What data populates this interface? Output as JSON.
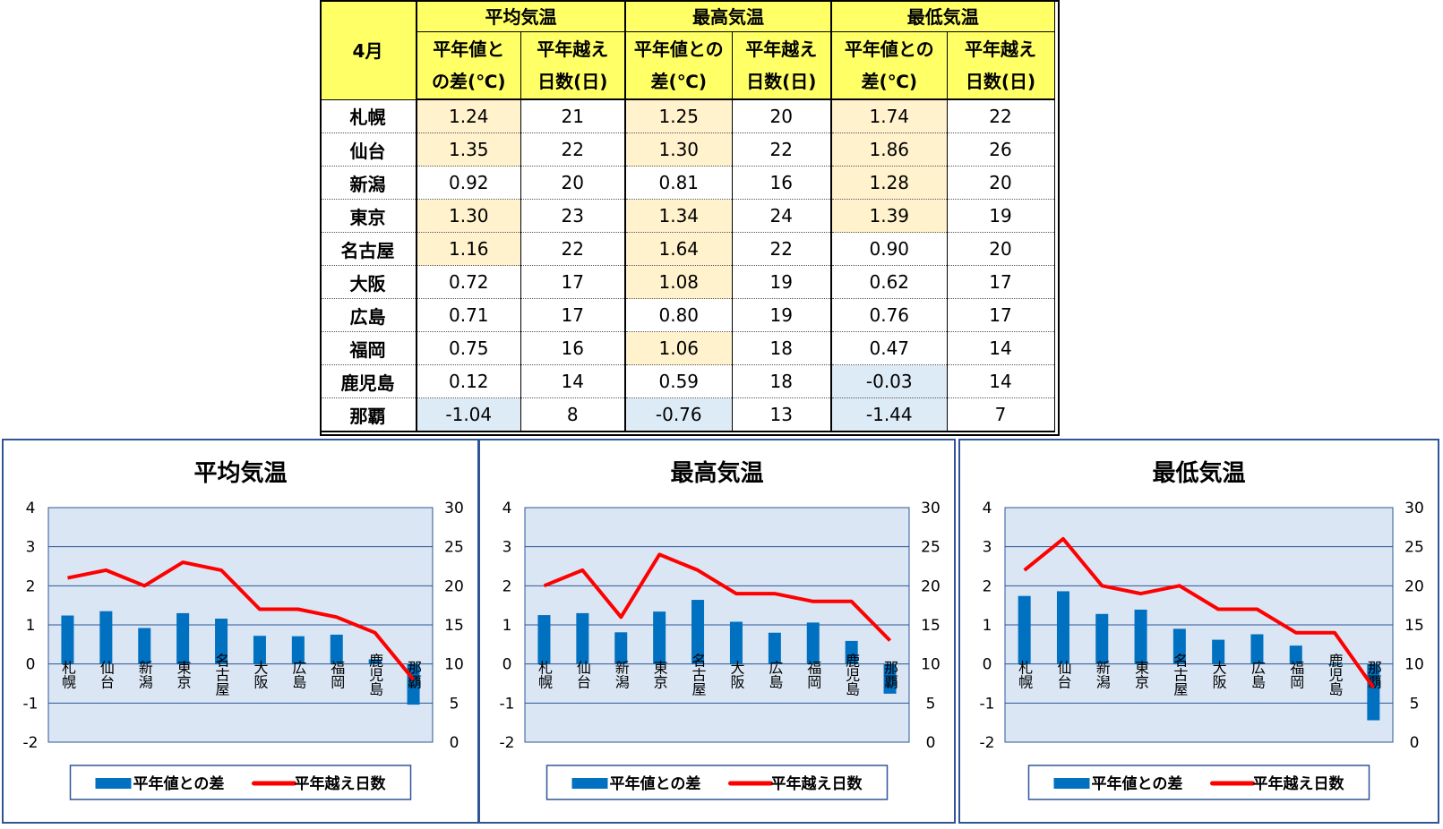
{
  "table": {
    "month_label": "4月",
    "groups": [
      "平均気温",
      "最高気温",
      "最低気温"
    ],
    "sub_headers": [
      [
        "平年値と",
        "の差(℃)"
      ],
      [
        "平年越え",
        "日数(日)"
      ],
      [
        "平年値との",
        "差(℃)"
      ],
      [
        "平年越え",
        "日数(日)"
      ],
      [
        "平年値との",
        "差(℃)"
      ],
      [
        "平年越え",
        "日数(日)"
      ]
    ],
    "rows": [
      {
        "city": "札幌",
        "cells": [
          "1.24",
          "21",
          "1.25",
          "20",
          "1.74",
          "22"
        ],
        "shade": [
          "hi",
          "",
          "hi",
          "",
          "hi",
          ""
        ]
      },
      {
        "city": "仙台",
        "cells": [
          "1.35",
          "22",
          "1.30",
          "22",
          "1.86",
          "26"
        ],
        "shade": [
          "hi",
          "",
          "hi",
          "",
          "hi",
          ""
        ]
      },
      {
        "city": "新潟",
        "cells": [
          "0.92",
          "20",
          "0.81",
          "16",
          "1.28",
          "20"
        ],
        "shade": [
          "",
          "",
          "",
          "",
          "hi",
          ""
        ]
      },
      {
        "city": "東京",
        "cells": [
          "1.30",
          "23",
          "1.34",
          "24",
          "1.39",
          "19"
        ],
        "shade": [
          "hi",
          "",
          "hi",
          "",
          "hi",
          ""
        ]
      },
      {
        "city": "名古屋",
        "cells": [
          "1.16",
          "22",
          "1.64",
          "22",
          "0.90",
          "20"
        ],
        "shade": [
          "hi",
          "",
          "hi",
          "",
          "",
          ""
        ]
      },
      {
        "city": "大阪",
        "cells": [
          "0.72",
          "17",
          "1.08",
          "19",
          "0.62",
          "17"
        ],
        "shade": [
          "",
          "",
          "hi",
          "",
          "",
          ""
        ]
      },
      {
        "city": "広島",
        "cells": [
          "0.71",
          "17",
          "0.80",
          "19",
          "0.76",
          "17"
        ],
        "shade": [
          "",
          "",
          "",
          "",
          "",
          ""
        ]
      },
      {
        "city": "福岡",
        "cells": [
          "0.75",
          "16",
          "1.06",
          "18",
          "0.47",
          "14"
        ],
        "shade": [
          "",
          "",
          "hi",
          "",
          "",
          ""
        ]
      },
      {
        "city": "鹿児島",
        "cells": [
          "0.12",
          "14",
          "0.59",
          "18",
          "-0.03",
          "14"
        ],
        "shade": [
          "",
          "",
          "",
          "",
          "lo",
          ""
        ]
      },
      {
        "city": "那覇",
        "cells": [
          "-1.04",
          "8",
          "-0.76",
          "13",
          "-1.44",
          "7"
        ],
        "shade": [
          "lo",
          "",
          "lo",
          "",
          "lo",
          ""
        ]
      }
    ]
  },
  "colors": {
    "bar": "#0070c0",
    "line": "#ff0000",
    "plot_bg": "#dae6f4",
    "grid": "#2f5597",
    "header_bg": "#ffff66",
    "above_normal": "#fff2cc",
    "below_normal": "#ddebf7"
  },
  "chart_data": [
    {
      "type": "bar",
      "title": "平均気温",
      "categories": [
        "札幌",
        "仙台",
        "新潟",
        "東京",
        "名古屋",
        "大阪",
        "広島",
        "福岡",
        "鹿児島",
        "那覇"
      ],
      "series": [
        {
          "name": "平年値との差",
          "kind": "bar",
          "axis": "left",
          "values": [
            1.24,
            1.35,
            0.92,
            1.3,
            1.16,
            0.72,
            0.71,
            0.75,
            0.12,
            -1.04
          ]
        },
        {
          "name": "平年越え日数",
          "kind": "line",
          "axis": "right",
          "values": [
            21,
            22,
            20,
            23,
            22,
            17,
            17,
            16,
            14,
            8
          ]
        }
      ],
      "ylim_left": [
        -2,
        4
      ],
      "yticks_left": [
        4,
        3,
        2,
        1,
        0,
        -1,
        -2
      ],
      "ylim_right": [
        0,
        30
      ],
      "yticks_right": [
        30,
        25,
        20,
        15,
        10,
        5,
        0
      ],
      "grid": true,
      "legend": "bottom"
    },
    {
      "type": "bar",
      "title": "最高気温",
      "categories": [
        "札幌",
        "仙台",
        "新潟",
        "東京",
        "名古屋",
        "大阪",
        "広島",
        "福岡",
        "鹿児島",
        "那覇"
      ],
      "series": [
        {
          "name": "平年値との差",
          "kind": "bar",
          "axis": "left",
          "values": [
            1.25,
            1.3,
            0.81,
            1.34,
            1.64,
            1.08,
            0.8,
            1.06,
            0.59,
            -0.76
          ]
        },
        {
          "name": "平年越え日数",
          "kind": "line",
          "axis": "right",
          "values": [
            20,
            22,
            16,
            24,
            22,
            19,
            19,
            18,
            18,
            13
          ]
        }
      ],
      "ylim_left": [
        -2,
        4
      ],
      "yticks_left": [
        4,
        3,
        2,
        1,
        0,
        -1,
        -2
      ],
      "ylim_right": [
        0,
        30
      ],
      "yticks_right": [
        30,
        25,
        20,
        15,
        10,
        5,
        0
      ],
      "grid": true,
      "legend": "bottom"
    },
    {
      "type": "bar",
      "title": "最低気温",
      "categories": [
        "札幌",
        "仙台",
        "新潟",
        "東京",
        "名古屋",
        "大阪",
        "広島",
        "福岡",
        "鹿児島",
        "那覇"
      ],
      "series": [
        {
          "name": "平年値との差",
          "kind": "bar",
          "axis": "left",
          "values": [
            1.74,
            1.86,
            1.28,
            1.39,
            0.9,
            0.62,
            0.76,
            0.47,
            -0.03,
            -1.44
          ]
        },
        {
          "name": "平年越え日数",
          "kind": "line",
          "axis": "right",
          "values": [
            22,
            26,
            20,
            19,
            20,
            17,
            17,
            14,
            14,
            7
          ]
        }
      ],
      "ylim_left": [
        -2,
        4
      ],
      "yticks_left": [
        4,
        3,
        2,
        1,
        0,
        -1,
        -2
      ],
      "ylim_right": [
        0,
        30
      ],
      "yticks_right": [
        30,
        25,
        20,
        15,
        10,
        5,
        0
      ],
      "grid": true,
      "legend": "bottom"
    }
  ]
}
